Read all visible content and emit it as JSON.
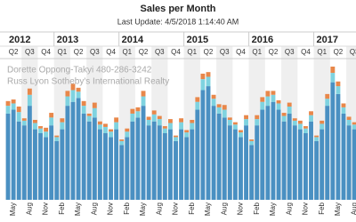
{
  "chart_data": {
    "type": "bar",
    "stacked": true,
    "title": "Sales per Month",
    "subtitle": "Last Update: 4/5/2018 1:14:40 AM",
    "watermark": [
      "Dorette Oppong-Takyi 480-286-3242",
      "Russ Lyon Sotheby's International Realty"
    ],
    "years": [
      "2012",
      "2013",
      "2014",
      "2015",
      "2016",
      "2017"
    ],
    "quarters": [
      "Q2",
      "Q3",
      "Q4",
      "Q1",
      "Q2",
      "Q3",
      "Q4",
      "Q1",
      "Q2",
      "Q3",
      "Q4",
      "Q1",
      "Q2",
      "Q3",
      "Q4",
      "Q1",
      "Q2",
      "Q3",
      "Q4",
      "Q1",
      "Q2",
      "Q3"
    ],
    "categories": [
      null,
      "May",
      null,
      null,
      "Aug",
      null,
      null,
      "Nov",
      null,
      null,
      "Feb",
      null,
      null,
      "May",
      null,
      null,
      "Aug",
      null,
      null,
      "Nov",
      null,
      null,
      "Feb",
      null,
      null,
      "May",
      null,
      null,
      "Aug",
      null,
      null,
      "Nov",
      null,
      null,
      "Feb",
      null,
      null,
      "May",
      null,
      null,
      "Aug",
      null,
      null,
      "Nov",
      null,
      null,
      "Feb",
      null,
      null,
      "May",
      null,
      null,
      "Aug",
      null,
      null,
      "Nov",
      null,
      null,
      "Feb",
      null,
      null,
      "May",
      null,
      null,
      "Aug"
    ],
    "series": [
      {
        "color": "#4a90c2",
        "values": [
          110,
          115,
          100,
          95,
          120,
          90,
          85,
          80,
          95,
          75,
          90,
          120,
          125,
          130,
          110,
          100,
          105,
          90,
          85,
          80,
          90,
          70,
          80,
          100,
          105,
          120,
          95,
          100,
          95,
          85,
          90,
          75,
          90,
          80,
          90,
          115,
          140,
          145,
          120,
          110,
          105,
          95,
          90,
          80,
          95,
          70,
          95,
          115,
          120,
          125,
          115,
          100,
          110,
          95,
          90,
          85,
          100,
          75,
          90,
          120,
          150,
          135,
          110,
          95,
          90
        ]
      },
      {
        "color": "#7fd3e0",
        "values": [
          10,
          8,
          12,
          6,
          14,
          8,
          6,
          7,
          10,
          5,
          9,
          12,
          15,
          8,
          10,
          7,
          12,
          6,
          8,
          7,
          9,
          5,
          7,
          10,
          8,
          12,
          7,
          9,
          8,
          6,
          8,
          5,
          9,
          6,
          8,
          10,
          14,
          12,
          9,
          8,
          10,
          7,
          6,
          6,
          8,
          5,
          8,
          10,
          12,
          9,
          8,
          7,
          9,
          6,
          7,
          6,
          8,
          5,
          7,
          9,
          12,
          10,
          8,
          7,
          6
        ]
      },
      {
        "color": "#e8874a",
        "values": [
          6,
          5,
          7,
          3,
          8,
          4,
          3,
          5,
          6,
          2,
          5,
          7,
          8,
          5,
          6,
          3,
          7,
          4,
          4,
          3,
          6,
          2,
          4,
          6,
          5,
          7,
          4,
          5,
          4,
          3,
          5,
          2,
          5,
          3,
          4,
          6,
          7,
          6,
          5,
          4,
          6,
          3,
          3,
          3,
          5,
          2,
          5,
          6,
          7,
          5,
          4,
          4,
          5,
          3,
          4,
          3,
          5,
          2,
          4,
          6,
          8,
          6,
          5,
          4,
          3
        ]
      }
    ]
  }
}
